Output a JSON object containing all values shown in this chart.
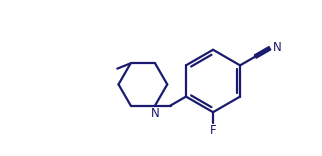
{
  "line_color": "#1a1a6e",
  "bg_color": "#ffffff",
  "bond_lw": 1.6,
  "font_size": 8.5,
  "figsize": [
    3.22,
    1.56
  ],
  "dpi": 100,
  "xlim": [
    0.0,
    10.5
  ],
  "ylim": [
    0.3,
    5.5
  ]
}
